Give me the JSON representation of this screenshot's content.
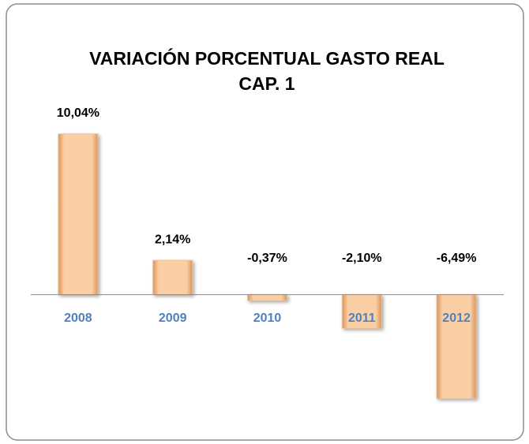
{
  "chart_data": {
    "type": "bar",
    "title": [
      "VARIACIÓN PORCENTUAL GASTO REAL",
      "CAP. 1"
    ],
    "categories": [
      "2008",
      "2009",
      "2010",
      "2011",
      "2012"
    ],
    "values": [
      10.04,
      2.14,
      -0.37,
      -2.1,
      -6.49
    ],
    "value_labels": [
      "10,04%",
      "2,14%",
      "-0,37%",
      "-2,10%",
      "-6,49%"
    ],
    "color": "#f8bf8c",
    "category_color": "#4f81bd",
    "ylim": [
      -8,
      12
    ]
  }
}
